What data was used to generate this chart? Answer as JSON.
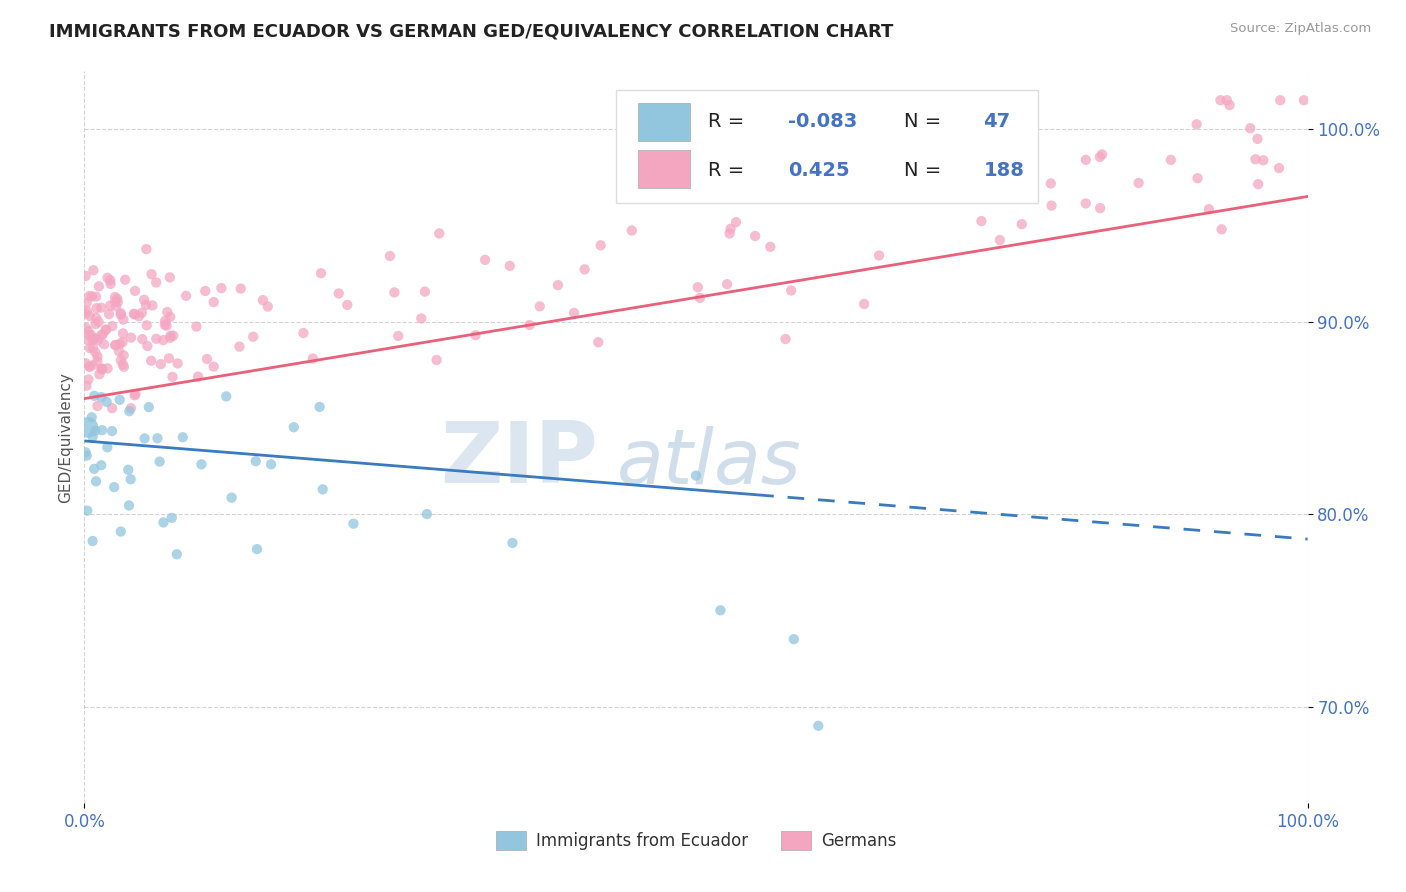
{
  "title": "IMMIGRANTS FROM ECUADOR VS GERMAN GED/EQUIVALENCY CORRELATION CHART",
  "source_text": "Source: ZipAtlas.com",
  "ylabel": "GED/Equivalency",
  "xlim": [
    0.0,
    1.0
  ],
  "ylim": [
    0.65,
    1.03
  ],
  "x_tick_labels": [
    "0.0%",
    "100.0%"
  ],
  "y_tick_labels": [
    "70.0%",
    "80.0%",
    "90.0%",
    "100.0%"
  ],
  "y_tick_values": [
    0.7,
    0.8,
    0.9,
    1.0
  ],
  "legend_label1": "Immigrants from Ecuador",
  "legend_label2": "Germans",
  "color_blue": "#92c5de",
  "color_pink": "#f4a6c0",
  "color_blue_line": "#3a7abf",
  "color_pink_line": "#e8607a",
  "watermark_zip": "ZIP",
  "watermark_atlas": "atlas",
  "r_ecuador": "-0.083",
  "n_ecuador": "47",
  "r_german": "0.425",
  "n_german": "188"
}
